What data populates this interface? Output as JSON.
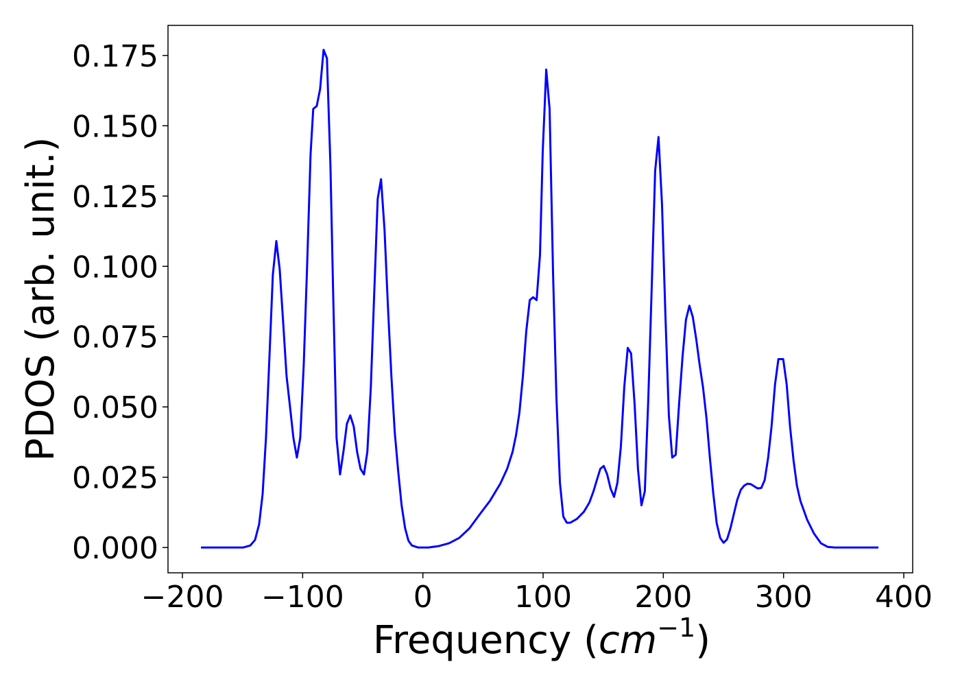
{
  "chart_data": {
    "type": "line",
    "xlabel": [
      "Frequency (",
      "cm",
      "−1",
      ")"
    ],
    "ylabel": "PDOS (arb. unit.)",
    "xlim": [
      -212,
      407.4
    ],
    "ylim": [
      -0.009,
      0.1857
    ],
    "xticks": [
      {
        "value": -200,
        "label": "−200"
      },
      {
        "value": -100,
        "label": "−100"
      },
      0,
      100,
      200,
      300,
      400
    ],
    "yticks": [
      {
        "value": 0,
        "label": "0.000"
      },
      0.025,
      {
        "value": 0.05,
        "label": "0.050"
      },
      0.075,
      {
        "value": 0.1,
        "label": "0.100"
      },
      0.125,
      {
        "value": 0.15,
        "label": "0.150"
      },
      0.175
    ],
    "grid": false,
    "series": [
      {
        "color": "#0000ff",
        "x": [
          -184.6,
          -149.3,
          -143.6,
          -139.6,
          -136.2,
          -133.3,
          -130.5,
          -127.6,
          -124.8,
          -121.9,
          -119.1,
          -116.2,
          -113.4,
          -110.5,
          -107.7,
          -104.8,
          -102.0,
          -99.1,
          -96.3,
          -93.4,
          -91.2,
          -88.3,
          -85.5,
          -82.6,
          -79.8,
          -76.9,
          -74.6,
          -71.8,
          -68.9,
          -66.1,
          -63.2,
          -60.4,
          -57.5,
          -54.7,
          -51.9,
          -49.0,
          -46.2,
          -43.3,
          -40.5,
          -37.6,
          -34.8,
          -31.9,
          -29.1,
          -26.2,
          -23.4,
          -20.5,
          -17.7,
          -14.8,
          -12.0,
          -9.1,
          -4.0,
          4.6,
          13.1,
          21.7,
          30.2,
          38.7,
          47.3,
          55.8,
          64.4,
          70.1,
          74.6,
          77.5,
          80.3,
          83.2,
          86.0,
          88.9,
          91.7,
          94.6,
          97.4,
          99.7,
          102.6,
          105.4,
          108.3,
          111.1,
          114.0,
          116.8,
          119.7,
          122.5,
          128.2,
          133.9,
          138.5,
          141.9,
          144.7,
          147.6,
          150.4,
          153.3,
          156.1,
          159.0,
          161.8,
          164.7,
          167.5,
          170.4,
          173.2,
          176.1,
          178.9,
          181.8,
          184.6,
          187.5,
          190.3,
          193.2,
          196.0,
          198.9,
          201.7,
          204.6,
          207.4,
          210.3,
          213.1,
          216.0,
          218.8,
          221.7,
          224.5,
          227.4,
          230.2,
          233.0,
          235.9,
          238.7,
          241.6,
          244.4,
          247.3,
          250.1,
          253.0,
          255.8,
          258.7,
          261.5,
          264.4,
          267.2,
          270.1,
          272.9,
          275.8,
          278.6,
          281.5,
          284.3,
          287.2,
          290.0,
          292.9,
          295.7,
          299.7,
          302.6,
          305.4,
          308.3,
          311.1,
          314.0,
          319.7,
          325.4,
          331.1,
          336.8,
          342.5,
          378.9
        ],
        "values": [
          0,
          0,
          0.0007,
          0.0027,
          0.0083,
          0.019,
          0.039,
          0.068,
          0.097,
          0.109,
          0.099,
          0.08,
          0.061,
          0.05,
          0.039,
          0.032,
          0.039,
          0.065,
          0.1,
          0.14,
          0.156,
          0.157,
          0.163,
          0.177,
          0.174,
          0.136,
          0.09,
          0.039,
          0.026,
          0.034,
          0.044,
          0.047,
          0.043,
          0.034,
          0.028,
          0.026,
          0.034,
          0.057,
          0.09,
          0.124,
          0.131,
          0.113,
          0.086,
          0.061,
          0.041,
          0.027,
          0.015,
          0.0069,
          0.0024,
          0.0007,
          0,
          0,
          0.0005,
          0.0015,
          0.0034,
          0.0068,
          0.0118,
          0.0166,
          0.0227,
          0.028,
          0.034,
          0.04,
          0.048,
          0.061,
          0.077,
          0.088,
          0.089,
          0.088,
          0.104,
          0.141,
          0.17,
          0.156,
          0.097,
          0.053,
          0.023,
          0.011,
          0.0088,
          0.0088,
          0.0102,
          0.0127,
          0.016,
          0.02,
          0.024,
          0.028,
          0.029,
          0.026,
          0.021,
          0.018,
          0.023,
          0.036,
          0.057,
          0.071,
          0.069,
          0.051,
          0.028,
          0.015,
          0.02,
          0.053,
          0.092,
          0.134,
          0.146,
          0.122,
          0.083,
          0.047,
          0.032,
          0.033,
          0.051,
          0.068,
          0.081,
          0.086,
          0.082,
          0.074,
          0.065,
          0.057,
          0.046,
          0.032,
          0.019,
          0.0086,
          0.0034,
          0.0017,
          0.0029,
          0.0068,
          0.012,
          0.017,
          0.0205,
          0.022,
          0.0227,
          0.0225,
          0.0217,
          0.021,
          0.0212,
          0.024,
          0.032,
          0.043,
          0.058,
          0.067,
          0.067,
          0.058,
          0.043,
          0.031,
          0.022,
          0.0166,
          0.0098,
          0.0049,
          0.0015,
          0.0002,
          0,
          0
        ]
      }
    ]
  }
}
